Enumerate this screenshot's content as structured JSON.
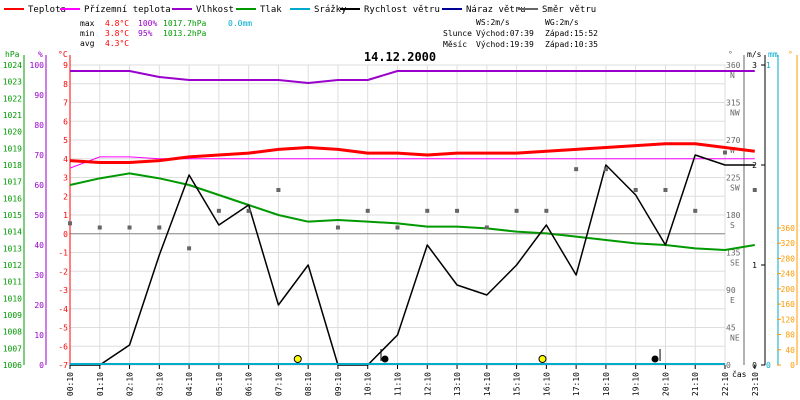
{
  "chart_data": {
    "type": "line",
    "date": "14.12.2000",
    "x_axis_label": "čas",
    "x_ticks": [
      "00:10",
      "01:10",
      "02:10",
      "03:10",
      "04:10",
      "05:10",
      "06:10",
      "07:10",
      "08:10",
      "09:10",
      "10:10",
      "11:10",
      "12:10",
      "13:10",
      "14:10",
      "15:10",
      "16:10",
      "17:10",
      "18:10",
      "19:10",
      "20:10",
      "21:10",
      "22:10",
      "23:10"
    ],
    "legend": [
      {
        "name": "Teplota",
        "color": "#ff0000"
      },
      {
        "name": "Přízemní teplota",
        "color": "#ff00ff"
      },
      {
        "name": "Vlhkost",
        "color": "#9900cc"
      },
      {
        "name": "Tlak",
        "color": "#009900"
      },
      {
        "name": "Srážky",
        "color": "#00aacc"
      },
      {
        "name": "Rychlost větru",
        "color": "#000000"
      },
      {
        "name": "Náraz větru",
        "color": "#000099"
      },
      {
        "name": "Směr větru",
        "color": "#666666"
      }
    ],
    "stats": {
      "max_label": "max",
      "min_label": "min",
      "avg_label": "avg",
      "max_temp": "4.8°C",
      "max_hum": "100%",
      "max_press": "1017.7hPa",
      "max_rain": "0.0mm",
      "min_temp": "3.8°C",
      "min_hum": "95%",
      "min_press": "1013.2hPa",
      "avg_temp": "4.3°C",
      "ws": "WS:2m/s",
      "wg": "WG:2m/s",
      "sun_label": "Slunce",
      "sunrise": "Východ:07:39",
      "sunset": "Západ:15:52",
      "moon_label": "Měsíc",
      "moonrise": "Východ:19:39",
      "moonset": "Západ:10:35"
    },
    "axes": {
      "hpa_unit": "hPa",
      "hpa_ticks": [
        "1024",
        "1023",
        "1022",
        "1021",
        "1020",
        "1019",
        "1018",
        "1017",
        "1016",
        "1015",
        "1014",
        "1013",
        "1012",
        "1011",
        "1010",
        "1009",
        "1008",
        "1007",
        "1006"
      ],
      "pct_unit": "%",
      "pct_ticks": [
        "100",
        "90",
        "80",
        "70",
        "60",
        "50",
        "40",
        "30",
        "20",
        "10",
        "0"
      ],
      "temp_unit": "°C",
      "temp_ticks": [
        "9",
        "8",
        "7",
        "6",
        "5",
        "4",
        "3",
        "2",
        "1",
        "0",
        "-1",
        "-2",
        "-3",
        "-4",
        "-5",
        "-6",
        "-7"
      ],
      "dir_unit": "°",
      "dir_ticks": [
        [
          "360",
          "N"
        ],
        [
          "315",
          "NW"
        ],
        [
          "270",
          "W"
        ],
        [
          "225",
          "SW"
        ],
        [
          "180",
          "S"
        ],
        [
          "135",
          "SE"
        ],
        [
          "90",
          "E"
        ],
        [
          "45",
          "NE"
        ],
        [
          "0",
          ""
        ]
      ],
      "ms_unit": "m/s",
      "ms_ticks": [
        "3",
        "2",
        "1",
        "0"
      ],
      "rain_unit": "mm",
      "rain_ticks": [
        "1",
        "0"
      ],
      "deg_unit": "°",
      "deg_ticks": [
        "360",
        "320",
        "280",
        "240",
        "200",
        "160",
        "120",
        "80",
        "40",
        "0"
      ]
    },
    "series": [
      {
        "name": "Teplota",
        "unit": "°C",
        "color": "#ff0000",
        "x": [
          0,
          1,
          2,
          3,
          4,
          5,
          6,
          7,
          8,
          9,
          10,
          11,
          12,
          13,
          14,
          15,
          16,
          17,
          18,
          19,
          20,
          21,
          22,
          23
        ],
        "values": [
          3.9,
          3.8,
          3.8,
          3.9,
          4.1,
          4.2,
          4.3,
          4.5,
          4.6,
          4.5,
          4.3,
          4.3,
          4.2,
          4.3,
          4.3,
          4.3,
          4.4,
          4.5,
          4.6,
          4.7,
          4.8,
          4.8,
          4.6,
          4.4
        ]
      },
      {
        "name": "Přízemní teplota",
        "unit": "°C",
        "color": "#ff00ff",
        "x": [
          0,
          1,
          2,
          3,
          4,
          5,
          6,
          7,
          8,
          9,
          10,
          11,
          12,
          13,
          14,
          15,
          16,
          17,
          18,
          19,
          20,
          21,
          22,
          23
        ],
        "values": [
          3.5,
          4.1,
          4.1,
          4.0,
          4.0,
          4.0,
          4.0,
          4.0,
          4.0,
          4.0,
          4.0,
          4.0,
          4.0,
          4.0,
          4.0,
          4.0,
          4.0,
          4.0,
          4.0,
          4.0,
          4.0,
          4.0,
          4.0,
          4.0
        ]
      },
      {
        "name": "Vlhkost",
        "unit": "%",
        "color": "#9900cc",
        "x": [
          0,
          1,
          2,
          3,
          4,
          5,
          6,
          7,
          8,
          9,
          10,
          11,
          12,
          13,
          14,
          15,
          16,
          17,
          18,
          19,
          20,
          21,
          22,
          23
        ],
        "values": [
          98,
          98,
          98,
          96,
          95,
          95,
          95,
          95,
          94,
          95,
          95,
          98,
          98,
          98,
          98,
          98,
          98,
          98,
          98,
          98,
          98,
          98,
          98,
          98
        ]
      },
      {
        "name": "Tlak",
        "unit": "hPa",
        "color": "#009900",
        "x": [
          0,
          1,
          2,
          3,
          4,
          5,
          6,
          7,
          8,
          9,
          10,
          11,
          12,
          13,
          14,
          15,
          16,
          17,
          18,
          19,
          20,
          21,
          22,
          23
        ],
        "values": [
          1016.8,
          1017.2,
          1017.5,
          1017.2,
          1016.8,
          1016.2,
          1015.6,
          1015.0,
          1014.6,
          1014.7,
          1014.6,
          1014.5,
          1014.3,
          1014.3,
          1014.2,
          1014.0,
          1013.9,
          1013.7,
          1013.5,
          1013.3,
          1013.2,
          1013.0,
          1012.9,
          1013.2
        ]
      },
      {
        "name": "Rychlost větru",
        "unit": "m/s",
        "color": "#000000",
        "x": [
          0,
          1,
          2,
          3,
          4,
          5,
          6,
          7,
          8,
          9,
          10,
          11,
          12,
          13,
          14,
          15,
          16,
          17,
          18,
          19,
          20,
          21,
          22,
          23
        ],
        "values": [
          0,
          0,
          0.2,
          1.1,
          1.9,
          1.4,
          1.6,
          0.6,
          1.0,
          0,
          0,
          0.3,
          1.2,
          0.8,
          0.7,
          1.0,
          1.4,
          0.9,
          2.0,
          1.7,
          1.2,
          2.1,
          2.0,
          2.0
        ]
      },
      {
        "name": "Směr větru",
        "unit": "°",
        "color": "#666666",
        "style": "points",
        "x": [
          0,
          1,
          2,
          3,
          4,
          5,
          6,
          7,
          9,
          10,
          11,
          12,
          13,
          14,
          15,
          16,
          17,
          18,
          19,
          20,
          21,
          22,
          23
        ],
        "values": [
          170,
          165,
          165,
          165,
          140,
          185,
          185,
          210,
          165,
          185,
          165,
          185,
          185,
          165,
          185,
          185,
          235,
          235,
          210,
          210,
          185,
          255,
          210
        ]
      }
    ],
    "temp_range": [
      -7,
      9
    ],
    "hum_range": [
      0,
      100
    ],
    "press_range": [
      1006,
      1024
    ],
    "dir_range": [
      0,
      360
    ],
    "wind_range": [
      0,
      3
    ],
    "markers": {
      "sunrise_hour": 7.65,
      "sunset_hour": 15.87,
      "moonset_hour": 10.58,
      "moonrise_hour": 19.65,
      "sun_color": "#ffff00"
    },
    "grid": true
  }
}
